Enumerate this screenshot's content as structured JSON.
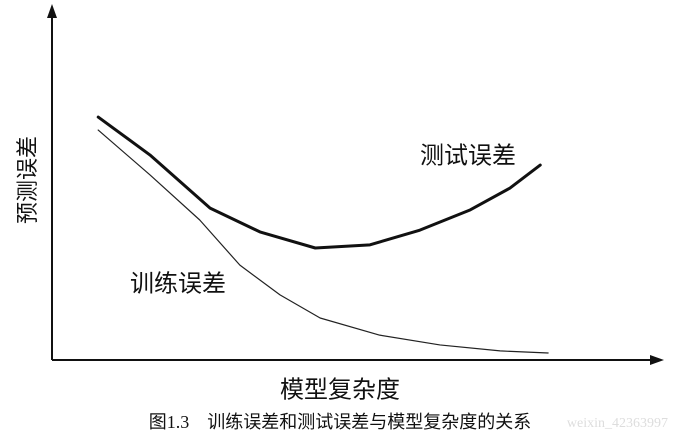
{
  "chart_data": {
    "type": "line",
    "ylabel": "预测误差",
    "xlabel": "模型复杂度",
    "caption": "图1.3　训练误差和测试误差与模型复杂度的关系",
    "watermark": "weixin_42363997",
    "xlim": [
      0,
      10
    ],
    "ylim": [
      0,
      10
    ],
    "series": [
      {
        "name": "测试误差",
        "color": "#111111",
        "width": 3,
        "x": [
          0.76,
          1.61,
          2.6,
          3.42,
          4.33,
          5.23,
          6.05,
          6.88,
          7.53,
          8.03
        ],
        "values": [
          6.94,
          5.86,
          4.34,
          3.66,
          3.2,
          3.29,
          3.71,
          4.29,
          4.91,
          5.57
        ]
      },
      {
        "name": "训练误差",
        "color": "#222222",
        "width": 1.2,
        "x": [
          0.76,
          1.61,
          2.43,
          3.09,
          3.75,
          4.41,
          5.39,
          6.38,
          7.37,
          8.16
        ],
        "values": [
          6.57,
          5.29,
          4.0,
          2.71,
          1.86,
          1.2,
          0.71,
          0.43,
          0.26,
          0.2
        ]
      }
    ]
  }
}
